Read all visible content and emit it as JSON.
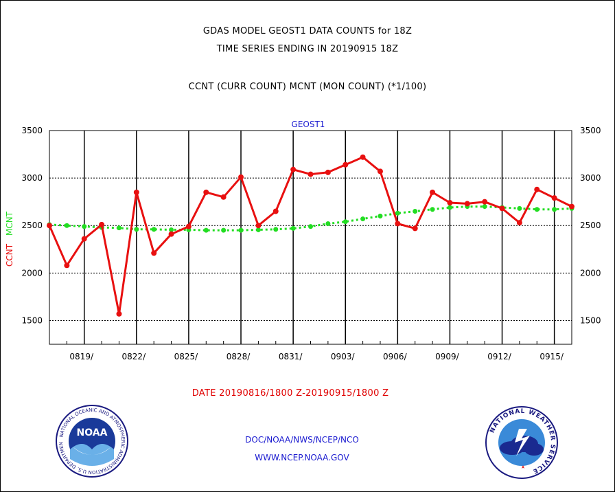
{
  "header": {
    "title": "GDAS MODEL GEOST1 DATA COUNTS for 18Z",
    "subtitle": "TIME SERIES ENDING IN 20190915 18Z",
    "series_desc": "CCNT (CURR COUNT) MCNT (MON COUNT) (*1/100)"
  },
  "footer": {
    "date_range": "DATE 20190816/1800 Z-20190915/1800 Z",
    "credit_line1": "DOC/NOAA/NWS/NCEP/NCO",
    "credit_line2": "WWW.NCEP.NOAA.GOV"
  },
  "logos": {
    "noaa": {
      "label": "NOAA",
      "ring_text": "NATIONAL OCEANIC AND ATMOSPHERIC ADMINISTRATION  U.S. DEPARTMENT OF COMMERCE"
    },
    "nws": {
      "ring_text": "NATIONAL WEATHER SERVICE"
    }
  },
  "colors": {
    "ccnt": "#e81010",
    "mcnt": "#22dd22",
    "title_blue": "#1a1ad0"
  },
  "chart_data": {
    "type": "line",
    "title": "GEOST1",
    "ylabel_left": [
      "CCNT",
      "MCNT"
    ],
    "y_ticks": [
      1500,
      2000,
      2500,
      3000,
      3500
    ],
    "ylim": [
      1250,
      3500
    ],
    "xlim": [
      0,
      30
    ],
    "x_tick_labels": [
      {
        "x": 2,
        "label": "0819/"
      },
      {
        "x": 5,
        "label": "0822/"
      },
      {
        "x": 8,
        "label": "0825/"
      },
      {
        "x": 11,
        "label": "0828/"
      },
      {
        "x": 14,
        "label": "0831/"
      },
      {
        "x": 17,
        "label": "0903/"
      },
      {
        "x": 20,
        "label": "0906/"
      },
      {
        "x": 23,
        "label": "0909/"
      },
      {
        "x": 26,
        "label": "0912/"
      },
      {
        "x": 29,
        "label": "0915/"
      }
    ],
    "series": [
      {
        "name": "CCNT",
        "x": [
          0,
          1,
          2,
          3,
          4,
          5,
          6,
          7,
          8,
          9,
          10,
          11,
          12,
          13,
          14,
          15,
          16,
          17,
          18,
          19,
          20,
          21,
          22,
          23,
          24,
          25,
          26,
          27,
          28,
          29,
          30
        ],
        "values": [
          2500,
          2080,
          2360,
          2510,
          1570,
          2850,
          2210,
          2410,
          2490,
          2850,
          2800,
          3010,
          2500,
          2650,
          3090,
          3040,
          3060,
          3140,
          3220,
          3070,
          2520,
          2470,
          2850,
          2740,
          2730,
          2750,
          2680,
          2530,
          2880,
          2790,
          2700
        ]
      },
      {
        "name": "MCNT",
        "x": [
          0,
          1,
          2,
          3,
          4,
          5,
          6,
          7,
          8,
          9,
          10,
          11,
          12,
          13,
          14,
          15,
          16,
          17,
          18,
          19,
          20,
          21,
          22,
          23,
          24,
          25,
          26,
          27,
          28,
          29,
          30
        ],
        "values": [
          2510,
          2500,
          2490,
          2480,
          2475,
          2460,
          2460,
          2455,
          2455,
          2450,
          2450,
          2450,
          2455,
          2460,
          2470,
          2490,
          2520,
          2540,
          2570,
          2600,
          2630,
          2650,
          2670,
          2690,
          2700,
          2700,
          2690,
          2680,
          2670,
          2670,
          2680
        ]
      }
    ]
  }
}
